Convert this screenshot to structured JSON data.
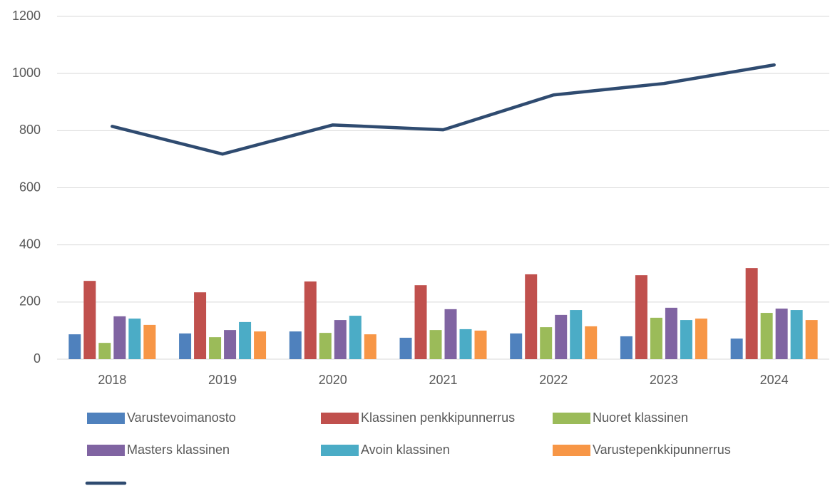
{
  "chart_data": {
    "type": "bar",
    "categories": [
      "2018",
      "2019",
      "2020",
      "2021",
      "2022",
      "2023",
      "2024"
    ],
    "ylim": [
      0,
      1200
    ],
    "yticks": [
      0,
      200,
      400,
      600,
      800,
      1000,
      1200
    ],
    "grid": true,
    "series": [
      {
        "name": "Varustevoimanosto",
        "color": "#4f81bd",
        "values": [
          87,
          90,
          97,
          75,
          90,
          80,
          72
        ]
      },
      {
        "name": "Klassinen penkkipunnerrus",
        "color": "#c0504d",
        "values": [
          274,
          234,
          272,
          259,
          297,
          294,
          319
        ]
      },
      {
        "name": "Nuoret klassinen",
        "color": "#9bbb59",
        "values": [
          57,
          77,
          92,
          102,
          112,
          145,
          162
        ]
      },
      {
        "name": "Masters klassinen",
        "color": "#8064a2",
        "values": [
          150,
          102,
          137,
          175,
          155,
          180,
          177
        ]
      },
      {
        "name": "Avoin klassinen",
        "color": "#4bacc6",
        "values": [
          142,
          130,
          152,
          105,
          172,
          137,
          172
        ]
      },
      {
        "name": "Varustepenkkipunnerrus",
        "color": "#f79646",
        "values": [
          120,
          97,
          87,
          100,
          115,
          142,
          137
        ]
      },
      {
        "type": "line",
        "color": "#2f4b70",
        "values": [
          815,
          718,
          820,
          803,
          925,
          965,
          1030
        ]
      }
    ]
  }
}
